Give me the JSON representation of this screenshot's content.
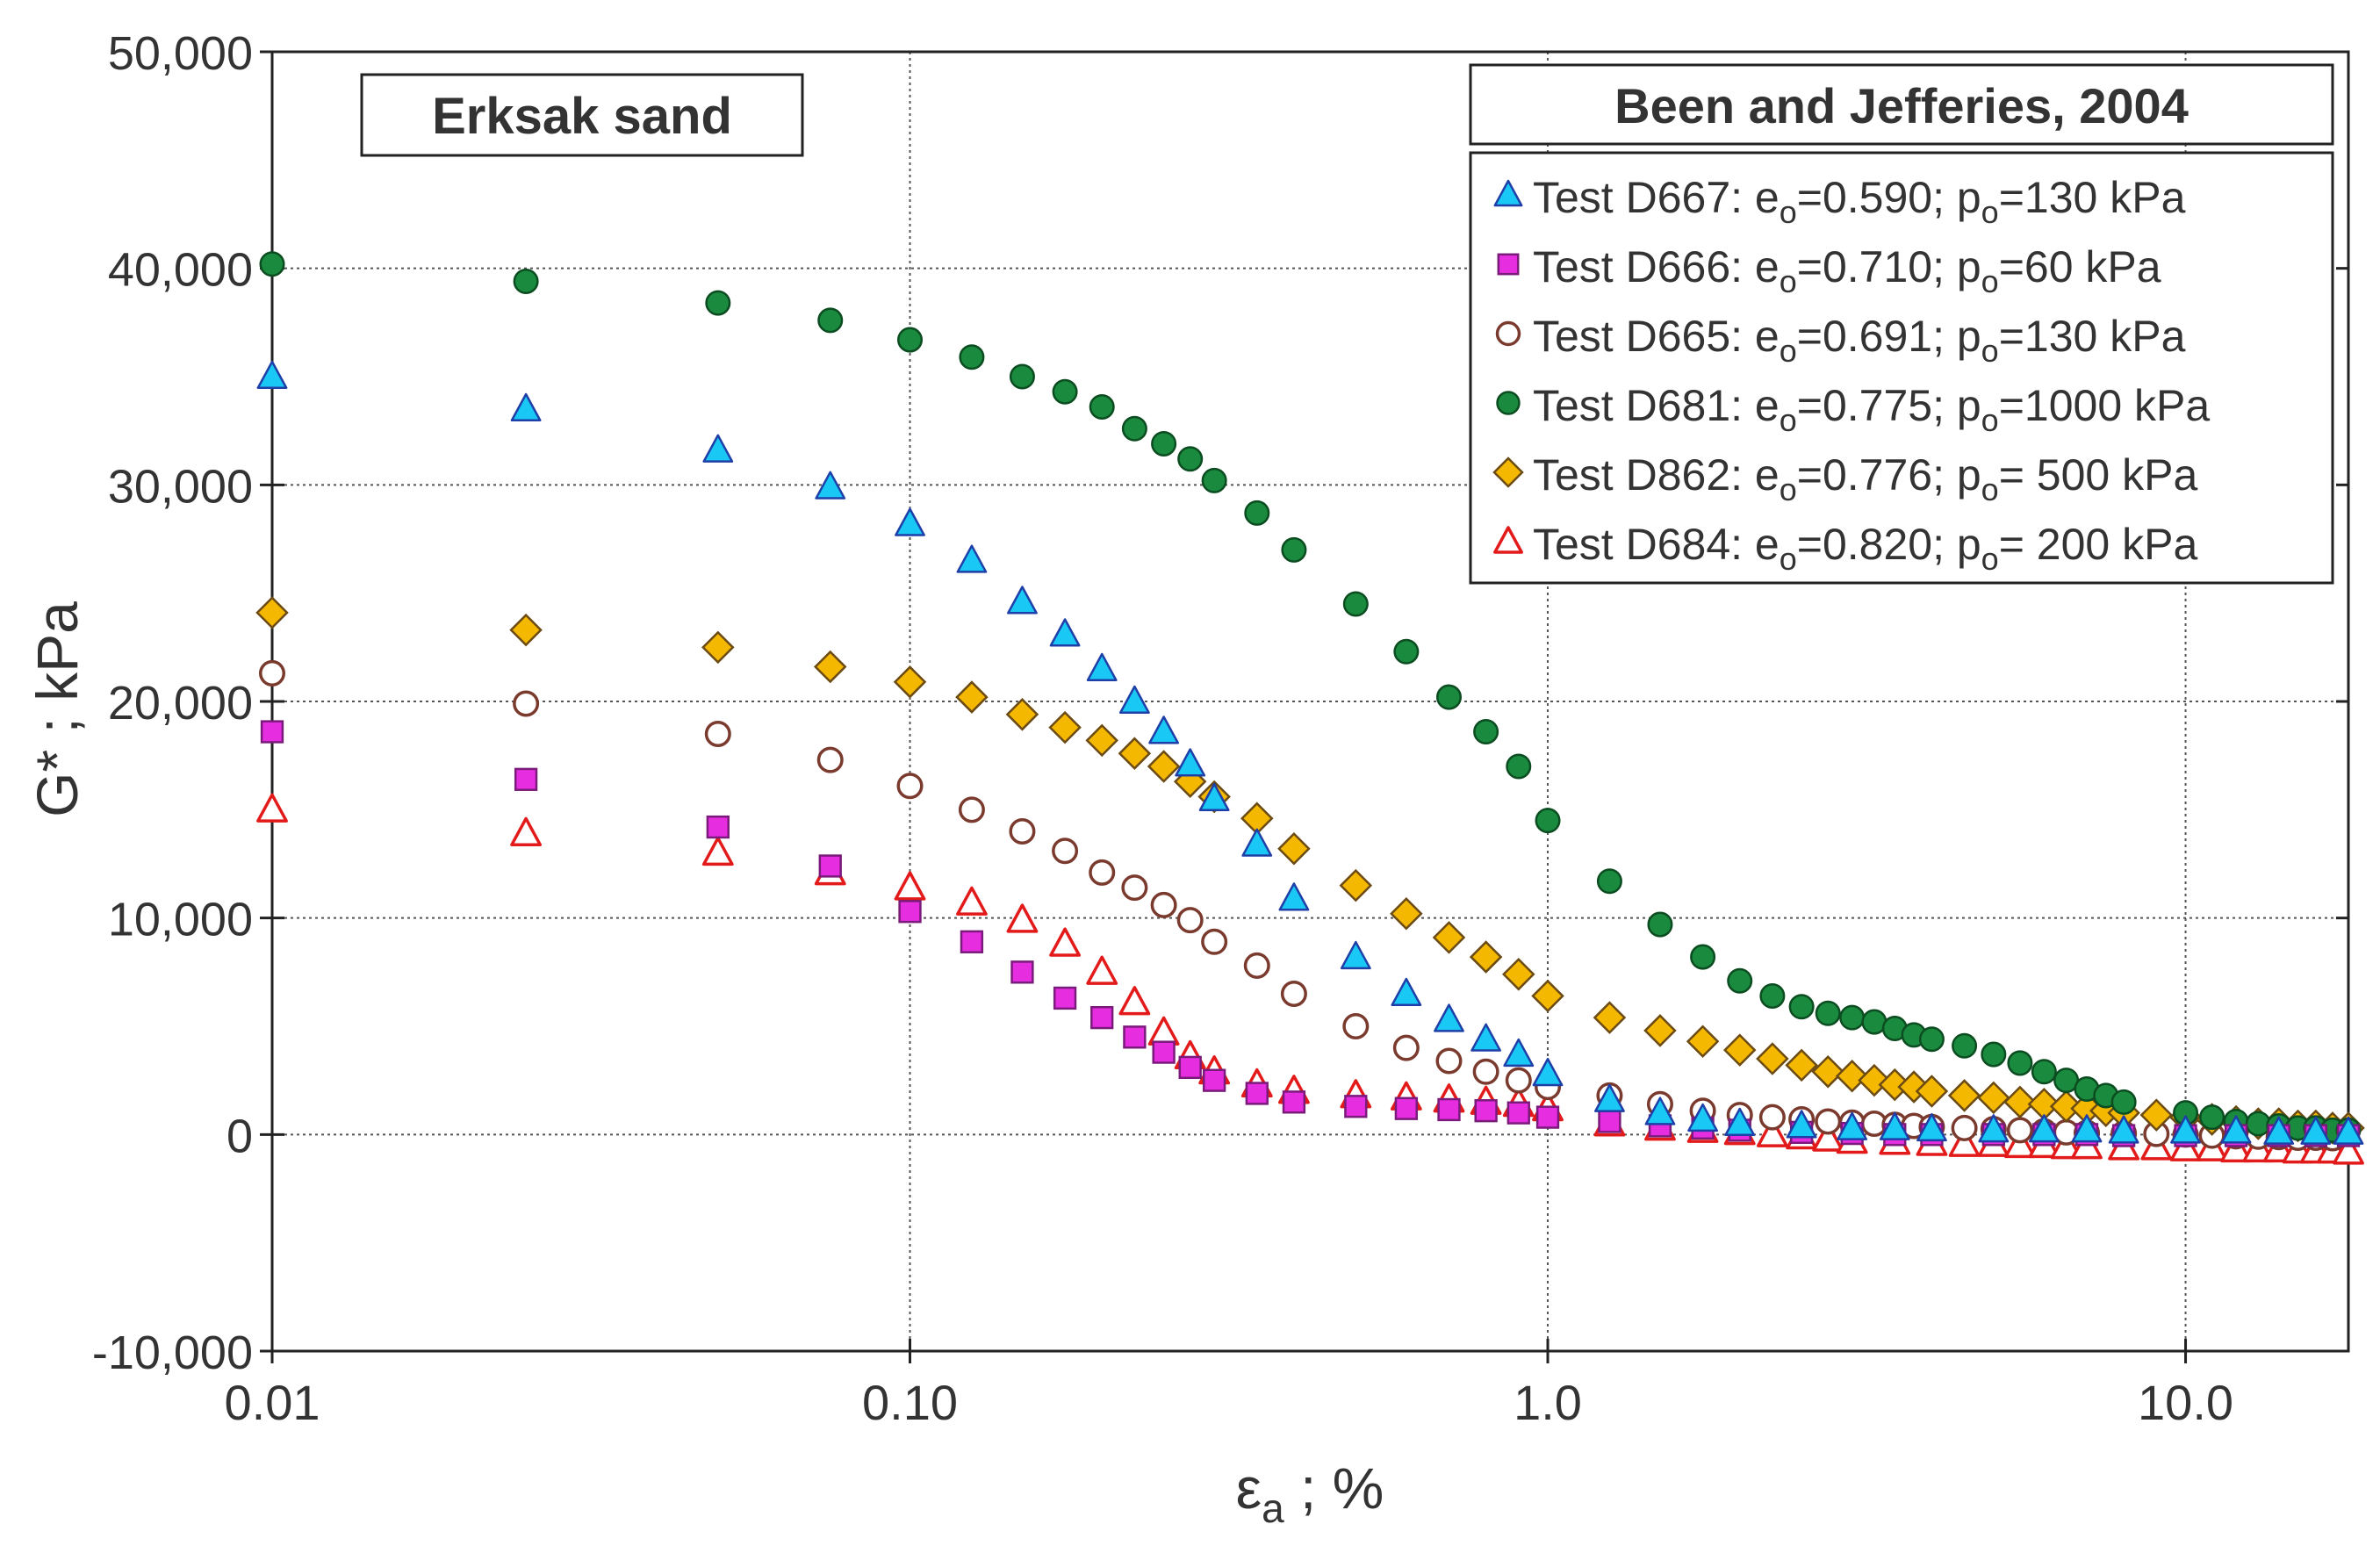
{
  "chart_data": {
    "type": "scatter",
    "x_scale": "log",
    "xlabel": "ε",
    "xlabel_sub": "a",
    "xlabel_suffix": " ; %",
    "ylabel": "G* ; kPa",
    "xlim": [
      0.01,
      18
    ],
    "ylim": [
      -10000,
      50000
    ],
    "x_ticks": [
      0.01,
      0.1,
      1.0,
      10.0
    ],
    "x_tick_labels": [
      "0.01",
      "0.10",
      "1.0",
      "10.0"
    ],
    "y_ticks": [
      -10000,
      0,
      10000,
      20000,
      30000,
      40000,
      50000
    ],
    "y_tick_labels": [
      "-10,000",
      "0",
      "10,000",
      "20,000",
      "30,000",
      "40,000",
      "50,000"
    ],
    "grid": true,
    "annotation": "Erksak sand",
    "legend": {
      "title": "Been and Jefferies, 2004",
      "position": "top-right",
      "entries": [
        {
          "test": "Test D667:",
          "e_label": "e",
          "e_sub": "o",
          "e_value": "=0.590;",
          "p_label": "p",
          "p_sub": "o",
          "p_value": "=130 kPa"
        },
        {
          "test": "Test D666:",
          "e_label": "e",
          "e_sub": "o",
          "e_value": "=0.710;",
          "p_label": "p",
          "p_sub": "o",
          "p_value": "=60 kPa"
        },
        {
          "test": "Test D665:",
          "e_label": "e",
          "e_sub": "o",
          "e_value": "=0.691;",
          "p_label": "p",
          "p_sub": "o",
          "p_value": "=130 kPa"
        },
        {
          "test": "Test D681:",
          "e_label": "e",
          "e_sub": "o",
          "e_value": "=0.775;",
          "p_label": "p",
          "p_sub": "o",
          "p_value": "=1000 kPa"
        },
        {
          "test": "Test D862:",
          "e_label": "e",
          "e_sub": "o",
          "e_value": "=0.776;",
          "p_label": "p",
          "p_sub": "o",
          "p_value": "= 500 kPa"
        },
        {
          "test": "Test D684:",
          "e_label": "e",
          "e_sub": "o",
          "e_value": "=0.820;",
          "p_label": "p",
          "p_sub": "o",
          "p_value": "= 200 kPa"
        }
      ]
    },
    "series": [
      {
        "name": "Test D667",
        "marker": "triangle",
        "fill": "#19c8f5",
        "stroke": "#1f3fa8",
        "points": [
          [
            0.01,
            35000
          ],
          [
            0.025,
            33500
          ],
          [
            0.05,
            31600
          ],
          [
            0.075,
            29900
          ],
          [
            0.1,
            28200
          ],
          [
            0.125,
            26500
          ],
          [
            0.15,
            24600
          ],
          [
            0.175,
            23100
          ],
          [
            0.2,
            21500
          ],
          [
            0.225,
            20000
          ],
          [
            0.25,
            18600
          ],
          [
            0.275,
            17100
          ],
          [
            0.3,
            15500
          ],
          [
            0.35,
            13400
          ],
          [
            0.4,
            10900
          ],
          [
            0.5,
            8200
          ],
          [
            0.6,
            6500
          ],
          [
            0.7,
            5300
          ],
          [
            0.8,
            4400
          ],
          [
            0.9,
            3700
          ],
          [
            1.0,
            2800
          ],
          [
            1.25,
            1600
          ],
          [
            1.5,
            1000
          ],
          [
            1.75,
            700
          ],
          [
            2.0,
            500
          ],
          [
            2.5,
            400
          ],
          [
            3.0,
            300
          ],
          [
            3.5,
            300
          ],
          [
            4.0,
            250
          ],
          [
            5.0,
            200
          ],
          [
            6.0,
            200
          ],
          [
            7.0,
            200
          ],
          [
            8.0,
            150
          ],
          [
            10.0,
            150
          ],
          [
            12.0,
            150
          ],
          [
            14.0,
            100
          ],
          [
            16.0,
            100
          ],
          [
            18.0,
            100
          ]
        ]
      },
      {
        "name": "Test D666",
        "marker": "square",
        "fill": "#e62ee0",
        "stroke": "#7a1a7a",
        "points": [
          [
            0.01,
            18600
          ],
          [
            0.025,
            16400
          ],
          [
            0.05,
            14200
          ],
          [
            0.075,
            12400
          ],
          [
            0.1,
            10300
          ],
          [
            0.125,
            8900
          ],
          [
            0.15,
            7500
          ],
          [
            0.175,
            6300
          ],
          [
            0.2,
            5400
          ],
          [
            0.225,
            4500
          ],
          [
            0.25,
            3800
          ],
          [
            0.275,
            3100
          ],
          [
            0.3,
            2500
          ],
          [
            0.35,
            1900
          ],
          [
            0.4,
            1500
          ],
          [
            0.5,
            1300
          ],
          [
            0.6,
            1200
          ],
          [
            0.7,
            1150
          ],
          [
            0.8,
            1100
          ],
          [
            0.9,
            1000
          ],
          [
            1.0,
            800
          ],
          [
            1.25,
            600
          ],
          [
            1.5,
            400
          ],
          [
            1.75,
            300
          ],
          [
            2.0,
            200
          ],
          [
            2.5,
            100
          ],
          [
            3.0,
            50
          ],
          [
            3.5,
            0
          ],
          [
            4.0,
            0
          ],
          [
            5.0,
            0
          ],
          [
            6.0,
            0
          ],
          [
            7.0,
            0
          ],
          [
            8.0,
            -50
          ],
          [
            10.0,
            -50
          ],
          [
            12.0,
            -50
          ],
          [
            14.0,
            -50
          ],
          [
            16.0,
            -50
          ],
          [
            18.0,
            -50
          ]
        ]
      },
      {
        "name": "Test D665",
        "marker": "circle-open",
        "fill": "#ffffff",
        "stroke": "#7a3b2e",
        "points": [
          [
            0.01,
            21300
          ],
          [
            0.025,
            19900
          ],
          [
            0.05,
            18500
          ],
          [
            0.075,
            17300
          ],
          [
            0.1,
            16100
          ],
          [
            0.125,
            15000
          ],
          [
            0.15,
            14000
          ],
          [
            0.175,
            13100
          ],
          [
            0.2,
            12100
          ],
          [
            0.225,
            11400
          ],
          [
            0.25,
            10600
          ],
          [
            0.275,
            9900
          ],
          [
            0.3,
            8900
          ],
          [
            0.35,
            7800
          ],
          [
            0.4,
            6500
          ],
          [
            0.5,
            5000
          ],
          [
            0.6,
            4000
          ],
          [
            0.7,
            3400
          ],
          [
            0.8,
            2900
          ],
          [
            0.9,
            2500
          ],
          [
            1.0,
            2200
          ],
          [
            1.25,
            1800
          ],
          [
            1.5,
            1400
          ],
          [
            1.75,
            1100
          ],
          [
            2.0,
            900
          ],
          [
            2.25,
            800
          ],
          [
            2.5,
            700
          ],
          [
            2.75,
            600
          ],
          [
            3.0,
            550
          ],
          [
            3.25,
            500
          ],
          [
            3.5,
            450
          ],
          [
            3.75,
            400
          ],
          [
            4.0,
            350
          ],
          [
            4.5,
            300
          ],
          [
            5.0,
            250
          ],
          [
            5.5,
            200
          ],
          [
            6.0,
            150
          ],
          [
            6.5,
            100
          ],
          [
            7.0,
            80
          ],
          [
            8.0,
            50
          ],
          [
            9.0,
            30
          ],
          [
            10.0,
            0
          ],
          [
            11.0,
            -50
          ],
          [
            12.0,
            -80
          ],
          [
            13.0,
            -100
          ],
          [
            14.0,
            -120
          ],
          [
            15.0,
            -150
          ],
          [
            16.0,
            -150
          ],
          [
            17.0,
            -170
          ]
        ]
      },
      {
        "name": "Test D681",
        "marker": "circle",
        "fill": "#1a8a3e",
        "stroke": "#0b4d20",
        "points": [
          [
            0.01,
            40200
          ],
          [
            0.025,
            39400
          ],
          [
            0.05,
            38400
          ],
          [
            0.075,
            37600
          ],
          [
            0.1,
            36700
          ],
          [
            0.125,
            35900
          ],
          [
            0.15,
            35000
          ],
          [
            0.175,
            34300
          ],
          [
            0.2,
            33600
          ],
          [
            0.225,
            32600
          ],
          [
            0.25,
            31900
          ],
          [
            0.275,
            31200
          ],
          [
            0.3,
            30200
          ],
          [
            0.35,
            28700
          ],
          [
            0.4,
            27000
          ],
          [
            0.5,
            24500
          ],
          [
            0.6,
            22300
          ],
          [
            0.7,
            20200
          ],
          [
            0.8,
            18600
          ],
          [
            0.9,
            17000
          ],
          [
            1.0,
            14500
          ],
          [
            1.25,
            11700
          ],
          [
            1.5,
            9700
          ],
          [
            1.75,
            8200
          ],
          [
            2.0,
            7100
          ],
          [
            2.25,
            6400
          ],
          [
            2.5,
            5900
          ],
          [
            2.75,
            5600
          ],
          [
            3.0,
            5400
          ],
          [
            3.25,
            5200
          ],
          [
            3.5,
            4900
          ],
          [
            3.75,
            4600
          ],
          [
            4.0,
            4400
          ],
          [
            4.5,
            4100
          ],
          [
            5.0,
            3700
          ],
          [
            5.5,
            3300
          ],
          [
            6.0,
            2900
          ],
          [
            6.5,
            2500
          ],
          [
            7.0,
            2100
          ],
          [
            7.5,
            1800
          ],
          [
            8.0,
            1500
          ],
          [
            10.0,
            1000
          ],
          [
            11.0,
            800
          ],
          [
            12.0,
            600
          ],
          [
            13.0,
            500
          ],
          [
            14.0,
            400
          ],
          [
            15.0,
            300
          ],
          [
            16.0,
            300
          ],
          [
            17.0,
            200
          ],
          [
            18.0,
            200
          ]
        ]
      },
      {
        "name": "Test D862",
        "marker": "diamond",
        "fill": "#f5b800",
        "stroke": "#6b4a14",
        "points": [
          [
            0.01,
            24100
          ],
          [
            0.025,
            23300
          ],
          [
            0.05,
            22500
          ],
          [
            0.075,
            21600
          ],
          [
            0.1,
            20900
          ],
          [
            0.125,
            20200
          ],
          [
            0.15,
            19400
          ],
          [
            0.175,
            18800
          ],
          [
            0.2,
            18200
          ],
          [
            0.225,
            17600
          ],
          [
            0.25,
            17000
          ],
          [
            0.275,
            16300
          ],
          [
            0.3,
            15600
          ],
          [
            0.35,
            14600
          ],
          [
            0.4,
            13200
          ],
          [
            0.5,
            11500
          ],
          [
            0.6,
            10200
          ],
          [
            0.7,
            9100
          ],
          [
            0.8,
            8200
          ],
          [
            0.9,
            7400
          ],
          [
            1.0,
            6400
          ],
          [
            1.25,
            5400
          ],
          [
            1.5,
            4800
          ],
          [
            1.75,
            4300
          ],
          [
            2.0,
            3900
          ],
          [
            2.25,
            3500
          ],
          [
            2.5,
            3200
          ],
          [
            2.75,
            2900
          ],
          [
            3.0,
            2700
          ],
          [
            3.25,
            2500
          ],
          [
            3.5,
            2300
          ],
          [
            3.75,
            2200
          ],
          [
            4.0,
            2000
          ],
          [
            4.5,
            1800
          ],
          [
            5.0,
            1700
          ],
          [
            5.5,
            1500
          ],
          [
            6.0,
            1400
          ],
          [
            6.5,
            1300
          ],
          [
            7.0,
            1200
          ],
          [
            7.5,
            1100
          ],
          [
            8.0,
            1000
          ],
          [
            9.0,
            900
          ],
          [
            10.0,
            800
          ],
          [
            11.0,
            700
          ],
          [
            12.0,
            600
          ],
          [
            13.0,
            500
          ],
          [
            14.0,
            500
          ],
          [
            15.0,
            400
          ],
          [
            16.0,
            400
          ],
          [
            17.0,
            300
          ],
          [
            18.0,
            300
          ]
        ]
      },
      {
        "name": "Test D684",
        "marker": "triangle-open",
        "fill": "#ffffff",
        "stroke": "#e31a1a",
        "points": [
          [
            0.01,
            15000
          ],
          [
            0.025,
            13900
          ],
          [
            0.05,
            13000
          ],
          [
            0.075,
            12100
          ],
          [
            0.1,
            11400
          ],
          [
            0.125,
            10700
          ],
          [
            0.15,
            9900
          ],
          [
            0.175,
            8800
          ],
          [
            0.2,
            7500
          ],
          [
            0.225,
            6100
          ],
          [
            0.25,
            4700
          ],
          [
            0.275,
            3600
          ],
          [
            0.3,
            2900
          ],
          [
            0.35,
            2300
          ],
          [
            0.4,
            2000
          ],
          [
            0.5,
            1800
          ],
          [
            0.6,
            1700
          ],
          [
            0.7,
            1600
          ],
          [
            0.8,
            1500
          ],
          [
            0.9,
            1400
          ],
          [
            1.0,
            1200
          ],
          [
            1.25,
            500
          ],
          [
            1.5,
            300
          ],
          [
            1.75,
            200
          ],
          [
            2.0,
            100
          ],
          [
            2.25,
            0
          ],
          [
            2.5,
            -100
          ],
          [
            2.75,
            -200
          ],
          [
            3.0,
            -300
          ],
          [
            3.5,
            -350
          ],
          [
            4.0,
            -400
          ],
          [
            4.5,
            -450
          ],
          [
            5.0,
            -450
          ],
          [
            5.5,
            -500
          ],
          [
            6.0,
            -500
          ],
          [
            6.5,
            -550
          ],
          [
            7.0,
            -550
          ],
          [
            8.0,
            -600
          ],
          [
            9.0,
            -600
          ],
          [
            10.0,
            -650
          ],
          [
            11.0,
            -650
          ],
          [
            12.0,
            -700
          ],
          [
            13.0,
            -700
          ],
          [
            14.0,
            -700
          ],
          [
            15.0,
            -750
          ],
          [
            16.0,
            -750
          ],
          [
            17.0,
            -750
          ],
          [
            18.0,
            -800
          ]
        ]
      }
    ]
  }
}
